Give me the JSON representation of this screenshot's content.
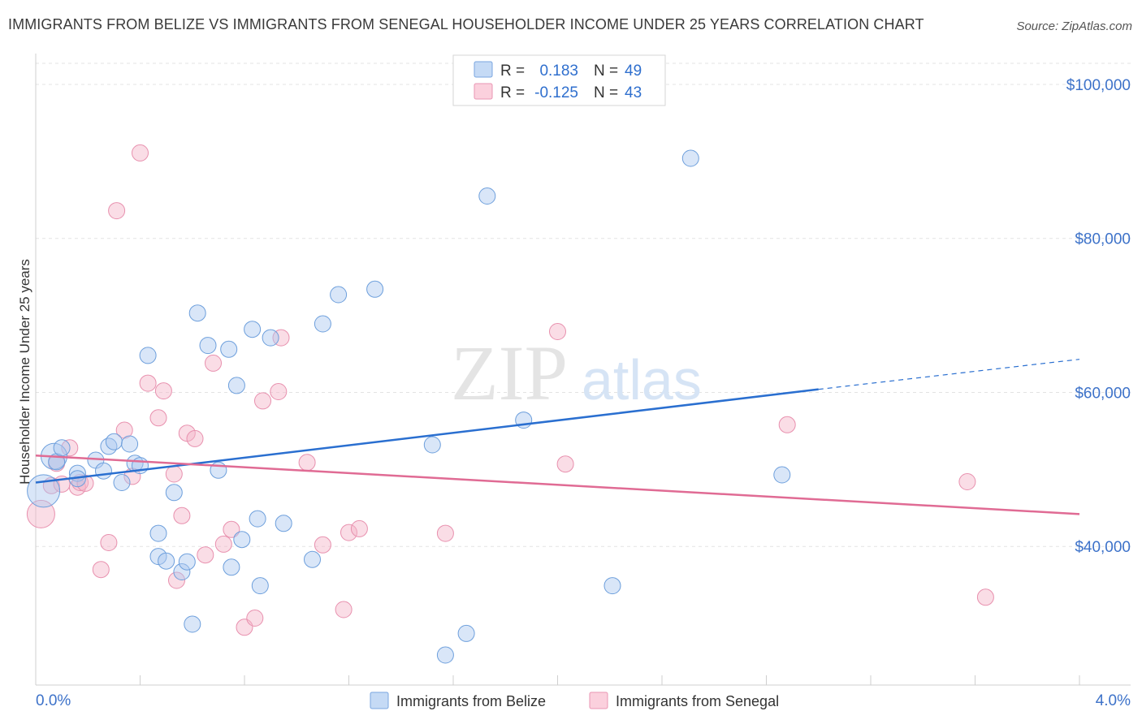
{
  "header": {
    "title": "IMMIGRANTS FROM BELIZE VS IMMIGRANTS FROM SENEGAL HOUSEHOLDER INCOME UNDER 25 YEARS CORRELATION CHART",
    "source": "Source: ZipAtlas.com"
  },
  "watermark": {
    "zip": "ZIP",
    "atlas": "atlas"
  },
  "legend": {
    "r_label": "R =",
    "n_label": "N =",
    "rows": [
      {
        "r": "0.183",
        "n": "49",
        "color": "#aac8f0"
      },
      {
        "r": "-0.125",
        "n": "43",
        "color": "#f5b3c8"
      }
    ]
  },
  "bottom_legend": [
    {
      "label": "Immigrants from Belize",
      "color": "#aac8f0"
    },
    {
      "label": "Immigrants from Senegal",
      "color": "#f5b3c8"
    }
  ],
  "chart_data": {
    "type": "scatter",
    "title": "IMMIGRANTS FROM BELIZE VS IMMIGRANTS FROM SENEGAL HOUSEHOLDER INCOME UNDER 25 YEARS CORRELATION CHART",
    "xlabel": "",
    "ylabel": "Householder Income Under 25 years",
    "xlim": [
      0,
      4.0
    ],
    "ylim": [
      22000,
      104000
    ],
    "x_tick_labels": [
      "0.0%",
      "4.0%"
    ],
    "y_ticks": [
      40000,
      60000,
      80000,
      100000
    ],
    "y_tick_labels": [
      "$40,000",
      "$60,000",
      "$80,000",
      "$100,000"
    ],
    "grid": true,
    "series": [
      {
        "name": "Immigrants from Belize",
        "color": "#aac8f0",
        "line_color": "#2a6fd0",
        "trend": {
          "x": [
            0.0,
            3.0
          ],
          "y": [
            48300,
            60400
          ],
          "dashed_to": [
            4.0,
            64300
          ]
        },
        "points": [
          [
            0.03,
            47200,
            20
          ],
          [
            0.07,
            51700,
            16
          ],
          [
            0.08,
            51000,
            10
          ],
          [
            0.1,
            52800,
            10
          ],
          [
            0.16,
            49500,
            10
          ],
          [
            0.16,
            48800,
            10
          ],
          [
            0.23,
            51200,
            10
          ],
          [
            0.26,
            49800,
            10
          ],
          [
            0.28,
            53000,
            10
          ],
          [
            0.3,
            53600,
            10
          ],
          [
            0.33,
            48300,
            10
          ],
          [
            0.36,
            53300,
            10
          ],
          [
            0.38,
            50800,
            10
          ],
          [
            0.4,
            50500,
            10
          ],
          [
            0.43,
            64800,
            10
          ],
          [
            0.47,
            38700,
            10
          ],
          [
            0.47,
            41700,
            10
          ],
          [
            0.5,
            38100,
            10
          ],
          [
            0.53,
            47000,
            10
          ],
          [
            0.56,
            36700,
            10
          ],
          [
            0.58,
            38000,
            10
          ],
          [
            0.6,
            29900,
            10
          ],
          [
            0.62,
            70300,
            10
          ],
          [
            0.66,
            66100,
            10
          ],
          [
            0.7,
            49900,
            10
          ],
          [
            0.74,
            65600,
            10
          ],
          [
            0.75,
            37300,
            10
          ],
          [
            0.77,
            60900,
            10
          ],
          [
            0.79,
            40900,
            10
          ],
          [
            0.83,
            68200,
            10
          ],
          [
            0.85,
            43600,
            10
          ],
          [
            0.86,
            34900,
            10
          ],
          [
            0.9,
            67100,
            10
          ],
          [
            0.95,
            43000,
            10
          ],
          [
            1.06,
            38300,
            10
          ],
          [
            1.1,
            68900,
            10
          ],
          [
            1.16,
            72700,
            10
          ],
          [
            1.3,
            73400,
            10
          ],
          [
            1.52,
            53200,
            10
          ],
          [
            1.57,
            25900,
            10
          ],
          [
            1.65,
            28700,
            10
          ],
          [
            1.73,
            85500,
            10
          ],
          [
            1.87,
            56400,
            10
          ],
          [
            2.21,
            34900,
            10
          ],
          [
            2.51,
            90400,
            10
          ],
          [
            2.86,
            49300,
            10
          ]
        ]
      },
      {
        "name": "Immigrants from Senegal",
        "color": "#f5b3c8",
        "line_color": "#e06b94",
        "trend": {
          "x": [
            0.0,
            4.0
          ],
          "y": [
            51800,
            44200
          ]
        },
        "points": [
          [
            0.02,
            44200,
            17
          ],
          [
            0.06,
            47900,
            10
          ],
          [
            0.08,
            50800,
            10
          ],
          [
            0.1,
            48100,
            10
          ],
          [
            0.13,
            52800,
            10
          ],
          [
            0.16,
            47700,
            10
          ],
          [
            0.17,
            48300,
            10
          ],
          [
            0.19,
            48200,
            10
          ],
          [
            0.25,
            37000,
            10
          ],
          [
            0.28,
            40500,
            10
          ],
          [
            0.31,
            83600,
            10
          ],
          [
            0.34,
            55100,
            10
          ],
          [
            0.37,
            49100,
            10
          ],
          [
            0.4,
            91100,
            10
          ],
          [
            0.43,
            61200,
            10
          ],
          [
            0.47,
            56700,
            10
          ],
          [
            0.49,
            60200,
            10
          ],
          [
            0.53,
            49400,
            10
          ],
          [
            0.54,
            35600,
            10
          ],
          [
            0.56,
            44000,
            10
          ],
          [
            0.58,
            54700,
            10
          ],
          [
            0.61,
            54000,
            10
          ],
          [
            0.65,
            38900,
            10
          ],
          [
            0.68,
            63800,
            10
          ],
          [
            0.72,
            40300,
            10
          ],
          [
            0.75,
            42200,
            10
          ],
          [
            0.8,
            29500,
            10
          ],
          [
            0.84,
            30700,
            10
          ],
          [
            0.87,
            58900,
            10
          ],
          [
            0.93,
            60100,
            10
          ],
          [
            0.94,
            67100,
            10
          ],
          [
            1.04,
            50900,
            10
          ],
          [
            1.1,
            40200,
            10
          ],
          [
            1.18,
            31800,
            10
          ],
          [
            1.2,
            41800,
            10
          ],
          [
            1.24,
            42300,
            10
          ],
          [
            1.57,
            41700,
            10
          ],
          [
            2.0,
            67900,
            10
          ],
          [
            2.03,
            50700,
            10
          ],
          [
            2.88,
            55800,
            10
          ],
          [
            3.57,
            48400,
            10
          ],
          [
            3.64,
            33400,
            10
          ]
        ]
      }
    ]
  }
}
